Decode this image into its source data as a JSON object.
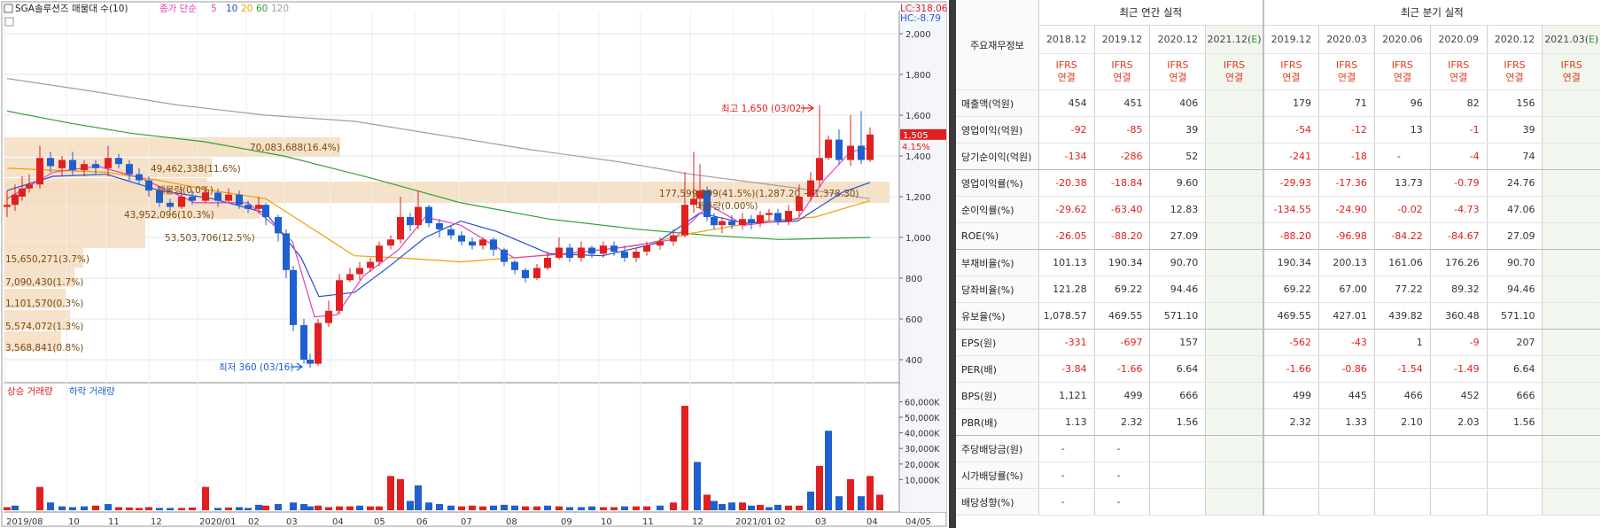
{
  "chart": {
    "title": "SGA솔루션즈 매물대 수(10)",
    "ma_legend": {
      "label": "종가 단순",
      "periods": [
        "5",
        "10",
        "20",
        "60",
        "120"
      ],
      "colors": [
        "#e040c0",
        "#2050d0",
        "#f0a000",
        "#30a030",
        "#a0a0a0"
      ]
    },
    "lc_label": "LC:318.06",
    "hc_label": "HC:-8.79",
    "price_label": "1,505",
    "change_label": "4.15%",
    "high_label": "최고 1,650 (03/02)",
    "low_label": "최저 360 (03/16)",
    "volume_legend": {
      "up": "상승 거래량",
      "down": "하락 거래량"
    },
    "price_ticks": [
      "2,000",
      "1,800",
      "1,600",
      "1,400",
      "1,200",
      "1,000",
      "800",
      "600",
      "400"
    ],
    "volume_ticks": [
      "60,000K",
      "50,000K",
      "40,000K",
      "30,000K",
      "20,000K",
      "10,000K"
    ],
    "x_labels": [
      "2019/08",
      "10",
      "11",
      "12",
      "2020/01",
      "02",
      "03",
      "04",
      "05",
      "06",
      "07",
      "08",
      "09",
      "10",
      "11",
      "12",
      "2021/01",
      "02",
      "03",
      "04",
      "04/05"
    ],
    "volume_profile": [
      {
        "label": "70,083,688(16.4%)"
      },
      {
        "label": "49,462,338(11.6%)"
      },
      {
        "label": "매물량(0.0%)"
      },
      {
        "label": "43,952,096(10.3%)"
      },
      {
        "label": "53,503,706(12.5%)"
      },
      {
        "label": "177,599,299(41.5%)(1,287.20 ~ 1,378.30)"
      },
      {
        "label": "매물량(0.00%)"
      },
      {
        "label": "15,650,271(3.7%)"
      },
      {
        "label": "7,090,430(1.7%)"
      },
      {
        "label": "1,101,570(0.3%)"
      },
      {
        "label": "5,574,072(1.3%)"
      },
      {
        "label": "3,568,841(0.8%)"
      }
    ],
    "colors": {
      "up": "#e02020",
      "down": "#1f5fd0",
      "profile": "#f5dcc0"
    }
  },
  "table": {
    "head_label": "주요재무정보",
    "annual_title": "최근 연간 실적",
    "quarter_title": "최근 분기 실적",
    "periods": [
      "2018.12",
      "2019.12",
      "2020.12",
      "2021.12(E)",
      "2019.12",
      "2020.03",
      "2020.06",
      "2020.09",
      "2020.12",
      "2021.03(E)"
    ],
    "ifrs_top": "IFRS",
    "ifrs_bottom": "연결",
    "rows": [
      {
        "label": "매출액(억원)",
        "values": [
          "454",
          "451",
          "406",
          "",
          "179",
          "71",
          "96",
          "82",
          "156",
          ""
        ]
      },
      {
        "label": "영업이익(억원)",
        "values": [
          "-92",
          "-85",
          "39",
          "",
          "-54",
          "-12",
          "13",
          "-1",
          "39",
          ""
        ]
      },
      {
        "label": "당기순이익(억원)",
        "values": [
          "-134",
          "-286",
          "52",
          "",
          "-241",
          "-18",
          "-",
          "-4",
          "74",
          ""
        ]
      },
      {
        "label": "영업이익률(%)",
        "values": [
          "-20.38",
          "-18.84",
          "9.60",
          "",
          "-29.93",
          "-17.36",
          "13.73",
          "-0.79",
          "24.76",
          ""
        ]
      },
      {
        "label": "순이익률(%)",
        "values": [
          "-29.62",
          "-63.40",
          "12.83",
          "",
          "-134.55",
          "-24.90",
          "-0.02",
          "-4.73",
          "47.06",
          ""
        ]
      },
      {
        "label": "ROE(%)",
        "values": [
          "-26.05",
          "-88.20",
          "27.09",
          "",
          "-88.20",
          "-96.98",
          "-84.22",
          "-84.67",
          "27.09",
          ""
        ]
      },
      {
        "label": "부채비율(%)",
        "values": [
          "101.13",
          "190.34",
          "90.70",
          "",
          "190.34",
          "200.13",
          "161.06",
          "176.26",
          "90.70",
          ""
        ]
      },
      {
        "label": "당좌비율(%)",
        "values": [
          "121.28",
          "69.22",
          "94.46",
          "",
          "69.22",
          "67.00",
          "77.22",
          "89.32",
          "94.46",
          ""
        ]
      },
      {
        "label": "유보율(%)",
        "values": [
          "1,078.57",
          "469.55",
          "571.10",
          "",
          "469.55",
          "427.01",
          "439.82",
          "360.48",
          "571.10",
          ""
        ]
      },
      {
        "label": "EPS(원)",
        "values": [
          "-331",
          "-697",
          "157",
          "",
          "-562",
          "-43",
          "1",
          "-9",
          "207",
          ""
        ]
      },
      {
        "label": "PER(배)",
        "values": [
          "-3.84",
          "-1.66",
          "6.64",
          "",
          "-1.66",
          "-0.86",
          "-1.54",
          "-1.49",
          "6.64",
          ""
        ]
      },
      {
        "label": "BPS(원)",
        "values": [
          "1,121",
          "499",
          "666",
          "",
          "499",
          "445",
          "466",
          "452",
          "666",
          ""
        ]
      },
      {
        "label": "PBR(배)",
        "values": [
          "1.13",
          "2.32",
          "1.56",
          "",
          "2.32",
          "1.33",
          "2.10",
          "2.03",
          "1.56",
          ""
        ]
      },
      {
        "label": "주당배당금(원)",
        "values": [
          "-",
          "-",
          "",
          "",
          "",
          "",
          "",
          "",
          "",
          ""
        ]
      },
      {
        "label": "시가배당률(%)",
        "values": [
          "-",
          "-",
          "",
          "",
          "",
          "",
          "",
          "",
          "",
          ""
        ]
      },
      {
        "label": "배당성향(%)",
        "values": [
          "-",
          "-",
          "",
          "",
          "",
          "",
          "",
          "",
          "",
          ""
        ]
      }
    ]
  }
}
